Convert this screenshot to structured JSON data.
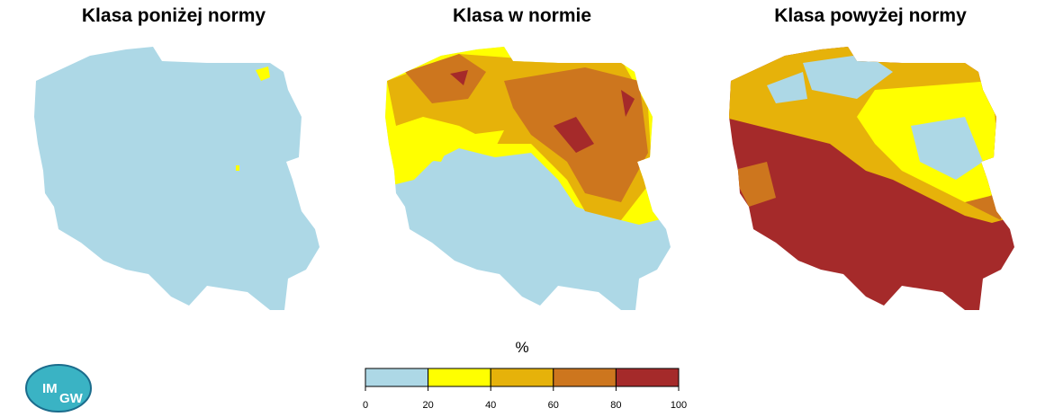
{
  "maps": [
    {
      "title": "Klasa poniżej normy"
    },
    {
      "title": "Klasa w normie"
    },
    {
      "title": "Klasa powyżej normy"
    }
  ],
  "legend": {
    "title": "%",
    "ticks": [
      0,
      20,
      40,
      60,
      80,
      100
    ],
    "colors": [
      "#add8e6",
      "#ffff00",
      "#e6b20a",
      "#cd761e",
      "#a52a2a"
    ]
  },
  "logo": {
    "text": [
      "IM",
      "GW"
    ]
  }
}
